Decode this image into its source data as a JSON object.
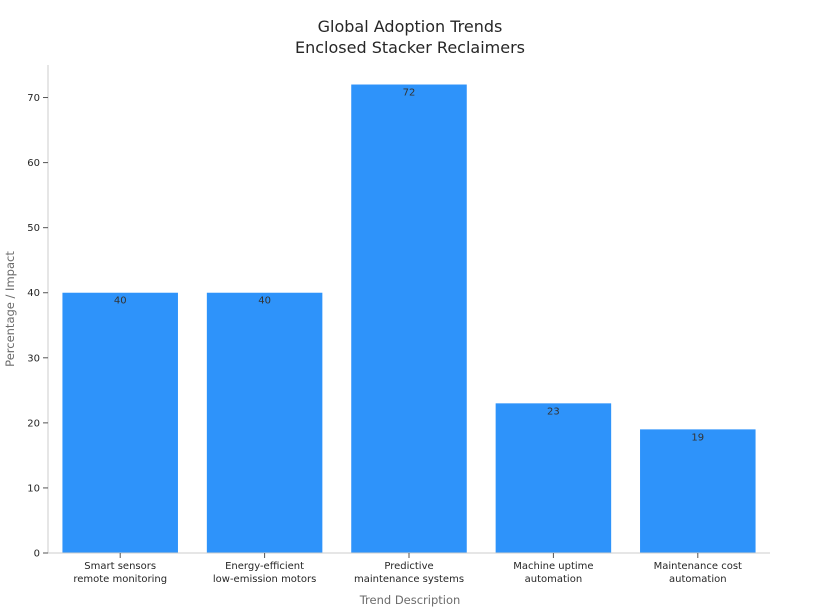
{
  "chart_data": {
    "type": "bar",
    "title": [
      "Global Adoption Trends",
      "Enclosed Stacker Reclaimers"
    ],
    "xlabel": "Trend Description",
    "ylabel": "Percentage / Impact",
    "categories": [
      [
        "Smart sensors",
        "remote monitoring"
      ],
      [
        "Energy-efficient",
        "low-emission motors"
      ],
      [
        "Predictive",
        "maintenance systems"
      ],
      [
        "Machine uptime",
        "automation"
      ],
      [
        "Maintenance cost",
        "automation"
      ]
    ],
    "values": [
      40,
      40,
      72,
      23,
      19
    ],
    "data_labels": [
      "40",
      "40",
      "72",
      "23",
      "19"
    ],
    "ylim": [
      0,
      75
    ],
    "yticks": [
      0,
      10,
      20,
      30,
      40,
      50,
      60,
      70
    ],
    "grid": false,
    "bar_color": "#2e93fa"
  }
}
